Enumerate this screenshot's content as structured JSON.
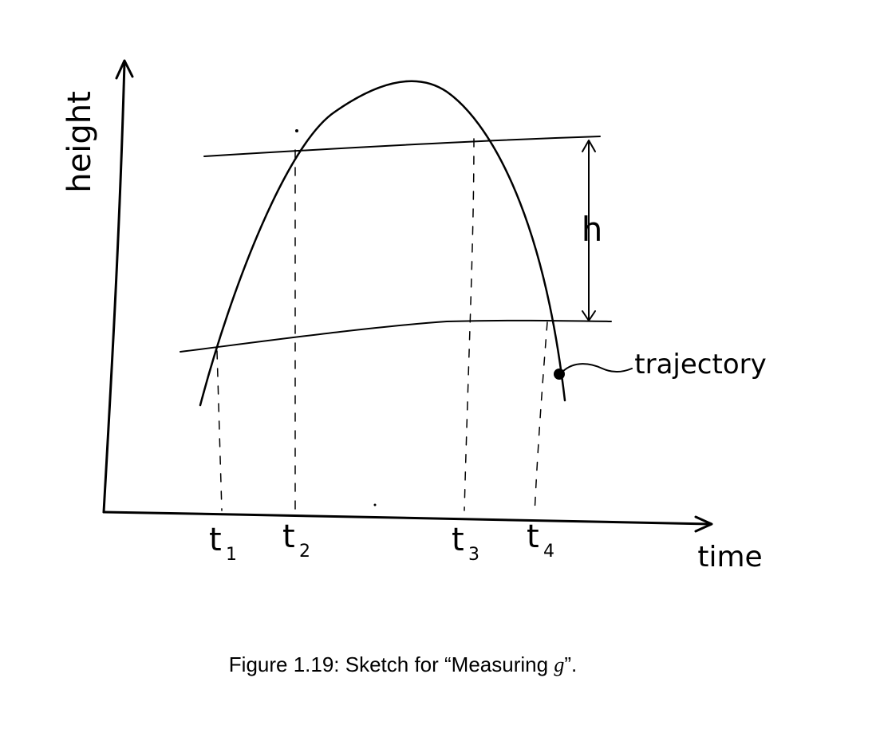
{
  "figure": {
    "y_axis_label": "height",
    "x_axis_label": "time",
    "height_label": "h",
    "curve_label": "trajectory",
    "time_labels": [
      {
        "name": "t",
        "sub": "1"
      },
      {
        "name": "t",
        "sub": "2"
      },
      {
        "name": "t",
        "sub": "3"
      },
      {
        "name": "t",
        "sub": "4"
      }
    ]
  },
  "caption": {
    "prefix": "Figure 1.19: Sketch for “Measuring ",
    "variable": "g",
    "suffix": "”."
  }
}
